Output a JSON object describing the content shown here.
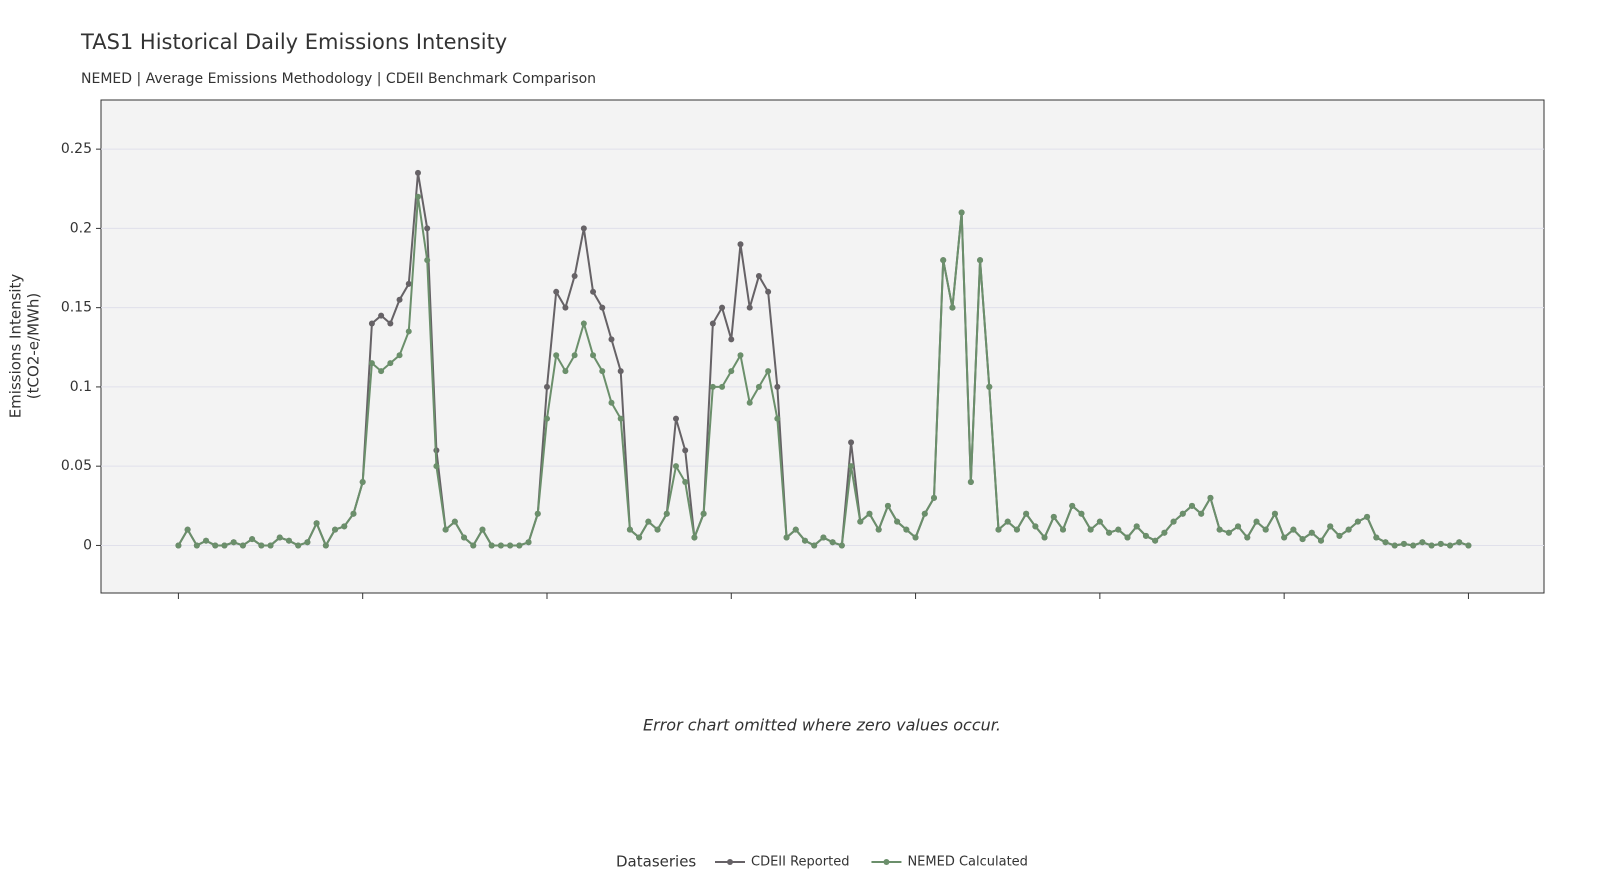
{
  "chart_data": {
    "type": "line",
    "title": "TAS1 Historical Daily Emissions Intensity",
    "subtitle": "NEMED | Average Emissions Methodology | CDEII Benchmark Comparison",
    "ylabel": [
      "Emissions Intensity",
      "(tCO2-e/MWh)"
    ],
    "annotation": "Error chart omitted where zero values occur.",
    "legend_title": "Dataseries",
    "legend": "bottom",
    "grid": true,
    "ylim": [
      -0.03,
      0.281
    ],
    "yticks": [
      0,
      0.05,
      0.1,
      0.15,
      0.2,
      0.25
    ],
    "xlim": [
      -8.4,
      148.2
    ],
    "xticks": [
      0,
      20,
      40,
      60,
      80,
      100,
      120,
      140
    ],
    "x": [
      0,
      1,
      2,
      3,
      4,
      5,
      6,
      7,
      8,
      9,
      10,
      11,
      12,
      13,
      14,
      15,
      16,
      17,
      18,
      19,
      20,
      21,
      22,
      23,
      24,
      25,
      26,
      27,
      28,
      29,
      30,
      31,
      32,
      33,
      34,
      35,
      36,
      37,
      38,
      39,
      40,
      41,
      42,
      43,
      44,
      45,
      46,
      47,
      48,
      49,
      50,
      51,
      52,
      53,
      54,
      55,
      56,
      57,
      58,
      59,
      60,
      61,
      62,
      63,
      64,
      65,
      66,
      67,
      68,
      69,
      70,
      71,
      72,
      73,
      74,
      75,
      76,
      77,
      78,
      79,
      80,
      81,
      82,
      83,
      84,
      85,
      86,
      87,
      88,
      89,
      90,
      91,
      92,
      93,
      94,
      95,
      96,
      97,
      98,
      99,
      100,
      101,
      102,
      103,
      104,
      105,
      106,
      107,
      108,
      109,
      110,
      111,
      112,
      113,
      114,
      115,
      116,
      117,
      118,
      119,
      120,
      121,
      122,
      123,
      124,
      125,
      126,
      127,
      128,
      129,
      130,
      131,
      132,
      133,
      134,
      135,
      136,
      137,
      138,
      139,
      140
    ],
    "series": [
      {
        "name": "CDEII Reported",
        "color": "#666266",
        "values": [
          0,
          0.01,
          0,
          0.003,
          0,
          0,
          0.002,
          0,
          0.004,
          0,
          0,
          0.005,
          0.003,
          0,
          0.002,
          0.014,
          0,
          0.01,
          0.012,
          0.02,
          0.04,
          0.14,
          0.145,
          0.14,
          0.155,
          0.165,
          0.235,
          0.2,
          0.06,
          0.01,
          0.015,
          0.005,
          0,
          0.01,
          0,
          0,
          0,
          0,
          0.002,
          0.02,
          0.1,
          0.16,
          0.15,
          0.17,
          0.2,
          0.16,
          0.15,
          0.13,
          0.11,
          0.01,
          0.005,
          0.015,
          0.01,
          0.02,
          0.08,
          0.06,
          0.005,
          0.02,
          0.14,
          0.15,
          0.13,
          0.19,
          0.15,
          0.17,
          0.16,
          0.1,
          0.005,
          0.01,
          0.003,
          0,
          0.005,
          0.002,
          0,
          0.065,
          0.015,
          0.02,
          0.01,
          0.025,
          0.015,
          0.01,
          0.005,
          0.02,
          0.03,
          0.18,
          0.15,
          0.21,
          0.04,
          0.18,
          0.1,
          0.01,
          0.015,
          0.01,
          0.02,
          0.012,
          0.005,
          0.018,
          0.01,
          0.025,
          0.02,
          0.01,
          0.015,
          0.008,
          0.01,
          0.005,
          0.012,
          0.006,
          0.003,
          0.008,
          0.015,
          0.02,
          0.025,
          0.02,
          0.03,
          0.01,
          0.008,
          0.012,
          0.005,
          0.015,
          0.01,
          0.02,
          0.005,
          0.01,
          0.004,
          0.008,
          0.003,
          0.012,
          0.006,
          0.01,
          0.015,
          0.018,
          0.005,
          0.002,
          0,
          0.001,
          0,
          0.002,
          0,
          0.001,
          0,
          0.002,
          0
        ]
      },
      {
        "name": "NEMED Calculated",
        "color": "#6b8f6b",
        "values": [
          0,
          0.01,
          0,
          0.003,
          0,
          0,
          0.002,
          0,
          0.004,
          0,
          0,
          0.005,
          0.003,
          0,
          0.002,
          0.014,
          0,
          0.01,
          0.012,
          0.02,
          0.04,
          0.115,
          0.11,
          0.115,
          0.12,
          0.135,
          0.22,
          0.18,
          0.05,
          0.01,
          0.015,
          0.005,
          0,
          0.01,
          0,
          0,
          0,
          0,
          0.002,
          0.02,
          0.08,
          0.12,
          0.11,
          0.12,
          0.14,
          0.12,
          0.11,
          0.09,
          0.08,
          0.01,
          0.005,
          0.015,
          0.01,
          0.02,
          0.05,
          0.04,
          0.005,
          0.02,
          0.1,
          0.1,
          0.11,
          0.12,
          0.09,
          0.1,
          0.11,
          0.08,
          0.005,
          0.01,
          0.003,
          0,
          0.005,
          0.002,
          0,
          0.05,
          0.015,
          0.02,
          0.01,
          0.025,
          0.015,
          0.01,
          0.005,
          0.02,
          0.03,
          0.18,
          0.15,
          0.21,
          0.04,
          0.18,
          0.1,
          0.01,
          0.015,
          0.01,
          0.02,
          0.012,
          0.005,
          0.018,
          0.01,
          0.025,
          0.02,
          0.01,
          0.015,
          0.008,
          0.01,
          0.005,
          0.012,
          0.006,
          0.003,
          0.008,
          0.015,
          0.02,
          0.025,
          0.02,
          0.03,
          0.01,
          0.008,
          0.012,
          0.005,
          0.015,
          0.01,
          0.02,
          0.005,
          0.01,
          0.004,
          0.008,
          0.003,
          0.012,
          0.006,
          0.01,
          0.015,
          0.018,
          0.005,
          0.002,
          0,
          0.001,
          0,
          0.002,
          0,
          0.001,
          0,
          0.002,
          0
        ]
      }
    ]
  }
}
